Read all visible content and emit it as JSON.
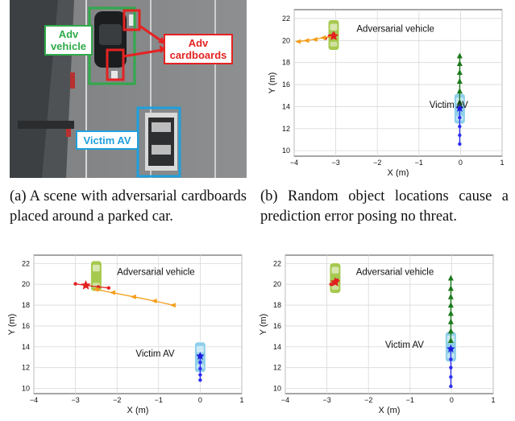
{
  "photo": {
    "labels": {
      "adv_vehicle": "Adv\nvehicle",
      "adv_cardboards": "Adv\ncardboards",
      "victim_av": "Victim AV"
    },
    "colors": {
      "adv_box": "#2faa4a",
      "cardboard_box": "#e52222",
      "victim_box": "#1fa0dc",
      "label_red": "#e52222"
    }
  },
  "captions": {
    "a": "(a) A scene with adversarial cardboards placed around a parked car.",
    "b": "(b) Random object locations cause a prediction error posing no threat."
  },
  "chart_data": [
    {
      "id": "b",
      "type": "scatter",
      "xlabel": "X (m)",
      "ylabel": "Y (m)",
      "xlim": [
        -4,
        1
      ],
      "ylim": [
        9.5,
        22.8
      ],
      "xticks": [
        -4,
        -3,
        -2,
        -1,
        0,
        1
      ],
      "yticks": [
        10,
        12,
        14,
        16,
        18,
        20,
        22
      ],
      "grid": true,
      "annotations": [
        {
          "text": "Adversarial vehicle",
          "x": -2.5,
          "y": 20.8
        },
        {
          "text": "Victim AV",
          "x": -0.75,
          "y": 13.9
        }
      ],
      "adv_car": {
        "x": -3.05,
        "y": 20.5
      },
      "victim_car": {
        "x": -0.02,
        "y": 13.8
      },
      "history_adv": {
        "x": [
          -3.25,
          -3.15,
          -3.05
        ],
        "y": [
          20.2,
          20.4,
          20.6
        ]
      },
      "prediction_adv": {
        "x": [
          -3.1,
          -3.3,
          -3.5,
          -3.7,
          -3.9
        ],
        "y": [
          20.35,
          20.25,
          20.1,
          20.0,
          19.9
        ]
      },
      "history_victim": {
        "x": [
          -0.02,
          -0.02,
          -0.02,
          -0.02,
          -0.02
        ],
        "y": [
          10.6,
          11.4,
          12.2,
          13.0,
          13.8
        ]
      },
      "prediction_victim": {
        "x": [
          -0.02,
          -0.02,
          -0.02,
          -0.02,
          -0.02,
          -0.02
        ],
        "y": [
          14.4,
          15.4,
          16.3,
          17.1,
          17.9,
          18.6
        ]
      },
      "star_adv": {
        "x": -3.05,
        "y": 20.4
      },
      "star_victim": {
        "x": -0.02,
        "y": 13.85
      }
    },
    {
      "id": "c",
      "type": "scatter",
      "xlabel": "X (m)",
      "ylabel": "Y (m)",
      "xlim": [
        -4,
        1
      ],
      "ylim": [
        9.5,
        22.8
      ],
      "xticks": [
        -4,
        -3,
        -2,
        -1,
        0,
        1
      ],
      "yticks": [
        10,
        12,
        14,
        16,
        18,
        20,
        22
      ],
      "grid": true,
      "annotations": [
        {
          "text": "Adversarial vehicle",
          "x": -2.0,
          "y": 20.9
        },
        {
          "text": "Victim AV",
          "x": -1.55,
          "y": 13.05
        }
      ],
      "adv_car": {
        "x": -2.5,
        "y": 20.8
      },
      "victim_car": {
        "x": 0.0,
        "y": 13.0
      },
      "history_adv": {
        "x": [
          -3.0,
          -2.75,
          -2.45,
          -2.2
        ],
        "y": [
          20.05,
          19.9,
          19.75,
          19.65
        ]
      },
      "prediction_adv": {
        "x": [
          -2.5,
          -2.1,
          -1.6,
          -1.1,
          -0.65
        ],
        "y": [
          19.5,
          19.2,
          18.8,
          18.4,
          18.0
        ]
      },
      "history_victim": {
        "x": [
          0.0,
          0.0,
          0.0,
          0.0,
          0.0
        ],
        "y": [
          10.8,
          11.3,
          11.9,
          12.5,
          13.1
        ]
      },
      "prediction_victim": {
        "x": [],
        "y": []
      },
      "star_adv": {
        "x": -2.75,
        "y": 19.9
      },
      "star_victim": {
        "x": 0.0,
        "y": 13.1
      }
    },
    {
      "id": "d",
      "type": "scatter",
      "xlabel": "X (m)",
      "ylabel": "Y (m)",
      "xlim": [
        -4,
        1
      ],
      "ylim": [
        9.5,
        22.8
      ],
      "xticks": [
        -4,
        -3,
        -2,
        -1,
        0,
        1
      ],
      "yticks": [
        10,
        12,
        14,
        16,
        18,
        20,
        22
      ],
      "grid": true,
      "annotations": [
        {
          "text": "Adversarial vehicle",
          "x": -2.3,
          "y": 20.9
        },
        {
          "text": "Victim AV",
          "x": -1.6,
          "y": 13.9
        }
      ],
      "adv_car": {
        "x": -2.8,
        "y": 20.6
      },
      "victim_car": {
        "x": -0.02,
        "y": 14.0
      },
      "history_adv": {
        "x": [
          -2.9,
          -2.82,
          -2.75
        ],
        "y": [
          20.0,
          20.2,
          20.4
        ]
      },
      "prediction_adv": {
        "x": [],
        "y": []
      },
      "history_victim": {
        "x": [
          -0.02,
          -0.02,
          -0.02,
          -0.02,
          -0.02
        ],
        "y": [
          10.2,
          11.1,
          12.0,
          12.8,
          13.8
        ]
      },
      "prediction_victim": {
        "x": [
          -0.02,
          -0.02,
          -0.02,
          -0.02,
          -0.02,
          -0.02,
          -0.02,
          -0.02
        ],
        "y": [
          14.6,
          15.5,
          16.4,
          17.2,
          18.0,
          18.8,
          19.6,
          20.6
        ]
      },
      "star_adv": {
        "x": -2.8,
        "y": 20.2
      },
      "star_victim": {
        "x": -0.02,
        "y": 13.8
      }
    }
  ],
  "colors": {
    "adv_car": "#a6c94f",
    "victim_car": "#8fcfe9",
    "history": "#e22020",
    "pred_adv": "#f59e1a",
    "victim_hist": "#2d2df0",
    "pred_victim": "#1b7a1b",
    "grid": "#d9d9d9"
  }
}
